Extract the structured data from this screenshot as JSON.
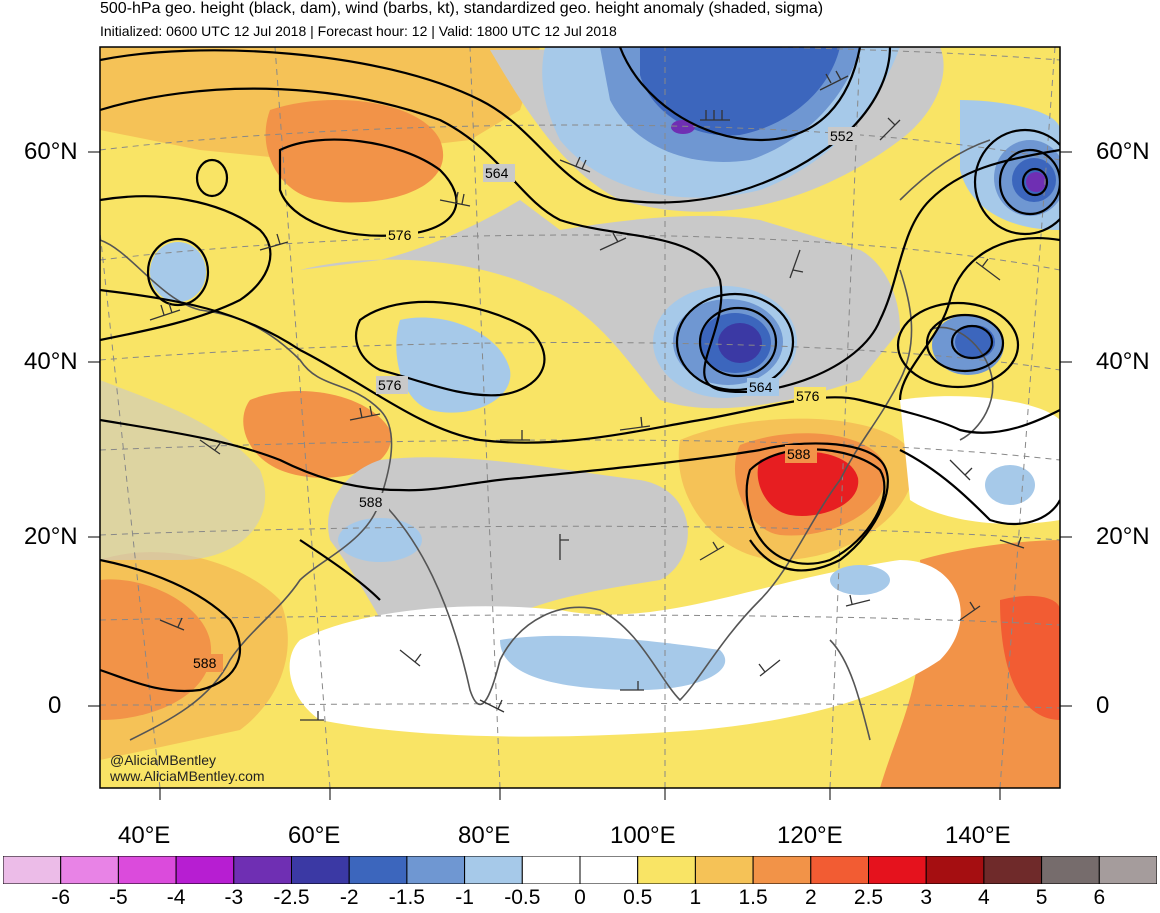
{
  "header": {
    "title": "500-hPa geo. height (black, dam), wind (barbs, kt), standardized geo. height anomaly (shaded, sigma)",
    "subtitle": "Initialized: 0600 UTC 12 Jul 2018 | Forecast hour: 12 | Valid: 1800 UTC 12 Jul 2018"
  },
  "map": {
    "lat_labels": [
      "60°N",
      "40°N",
      "20°N",
      "0"
    ],
    "lon_labels": [
      "40°E",
      "60°E",
      "80°E",
      "100°E",
      "120°E",
      "140°E"
    ],
    "contour_labels": [
      "564",
      "576",
      "552",
      "576",
      "564",
      "576",
      "588",
      "588",
      "588"
    ],
    "credit_handle": "@AliciaMBentley",
    "credit_url": "www.AliciaMBentley.com"
  },
  "colorbar": {
    "labels": [
      "-6",
      "-5",
      "-4",
      "-3",
      "-2.5",
      "-2",
      "-1.5",
      "-1",
      "-0.5",
      "0",
      "0.5",
      "1",
      "1.5",
      "2",
      "2.5",
      "3",
      "4",
      "5",
      "6"
    ],
    "colors": [
      "#ecbce8",
      "#e883e6",
      "#db4bdc",
      "#b71ed2",
      "#6f2fb3",
      "#3b39a4",
      "#3c66bd",
      "#6f97d2",
      "#a6c9e9",
      "#ffffff",
      "#ffffff",
      "#f9e465",
      "#f5c257",
      "#f29348",
      "#f25c33",
      "#e5121d",
      "#a50e11",
      "#6f2a2a",
      "#766c6c",
      "#a59c9c"
    ]
  }
}
